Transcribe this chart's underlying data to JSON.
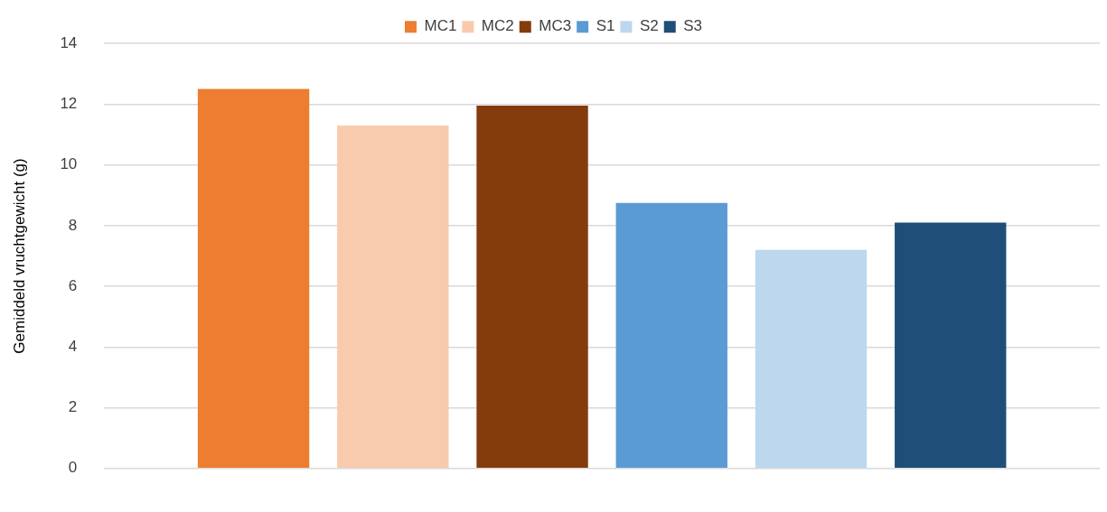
{
  "chart_data": {
    "type": "bar",
    "ylabel": "Gemiddeld vruchtgewicht (g)",
    "categories": [
      null
    ],
    "series": [
      {
        "name": "MC1",
        "color": "#ed7d31",
        "values": [
          12.5
        ]
      },
      {
        "name": "MC2",
        "color": "#f8cbad",
        "values": [
          11.3
        ]
      },
      {
        "name": "MC3",
        "color": "#843c0c",
        "values": [
          11.95
        ]
      },
      {
        "name": "S1",
        "color": "#5b9bd5",
        "values": [
          8.75
        ]
      },
      {
        "name": "S2",
        "color": "#bdd7ee",
        "values": [
          7.2
        ]
      },
      {
        "name": "S3",
        "color": "#1f4e79",
        "values": [
          8.1
        ]
      }
    ],
    "ylim": [
      0,
      14
    ],
    "yticks": [
      0,
      2,
      4,
      6,
      8,
      10,
      12,
      14
    ],
    "grid": "y",
    "legend": "top"
  }
}
